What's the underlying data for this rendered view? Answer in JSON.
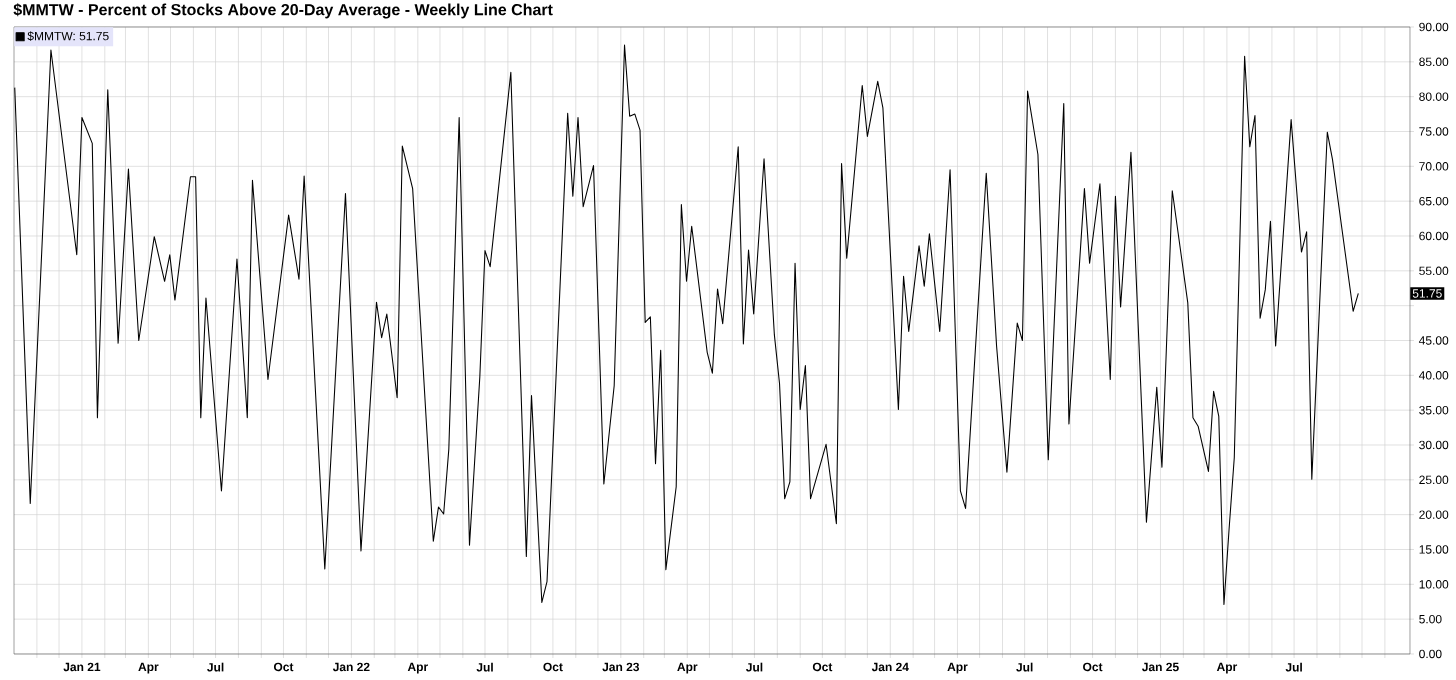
{
  "chart_data": {
    "type": "line",
    "title": "$MMTW - Percent of Stocks Above 20-Day Average - Weekly Line Chart",
    "series": [
      {
        "name": "$MMTW: 51.75",
        "color": "#000000",
        "x": [
          "2020-10-02",
          "2020-10-23",
          "2020-11-20",
          "2020-12-25",
          "2021-01-01",
          "2021-01-15",
          "2021-01-22",
          "2021-02-05",
          "2021-02-19",
          "2021-03-05",
          "2021-03-19",
          "2021-04-09",
          "2021-04-23",
          "2021-04-30",
          "2021-05-07",
          "2021-05-28",
          "2021-06-04",
          "2021-06-11",
          "2021-06-18",
          "2021-07-09",
          "2021-07-30",
          "2021-08-13",
          "2021-08-20",
          "2021-09-10",
          "2021-10-08",
          "2021-10-22",
          "2021-10-29",
          "2021-11-26",
          "2021-12-24",
          "2022-01-14",
          "2022-02-04",
          "2022-02-11",
          "2022-02-18",
          "2022-03-04",
          "2022-03-11",
          "2022-03-25",
          "2022-04-22",
          "2022-04-29",
          "2022-05-06",
          "2022-05-13",
          "2022-05-27",
          "2022-06-10",
          "2022-06-24",
          "2022-07-01",
          "2022-07-08",
          "2022-08-05",
          "2022-08-26",
          "2022-09-02",
          "2022-09-16",
          "2022-09-23",
          "2022-10-21",
          "2022-10-28",
          "2022-11-04",
          "2022-11-11",
          "2022-11-25",
          "2022-12-09",
          "2022-12-23",
          "2023-01-06",
          "2023-01-13",
          "2023-01-20",
          "2023-01-27",
          "2023-02-03",
          "2023-02-10",
          "2023-02-17",
          "2023-02-24",
          "2023-03-03",
          "2023-03-17",
          "2023-03-24",
          "2023-03-31",
          "2023-04-07",
          "2023-04-28",
          "2023-05-05",
          "2023-05-12",
          "2023-05-19",
          "2023-06-09",
          "2023-06-16",
          "2023-06-23",
          "2023-06-30",
          "2023-07-14",
          "2023-07-28",
          "2023-08-04",
          "2023-08-11",
          "2023-08-18",
          "2023-08-25",
          "2023-09-01",
          "2023-09-08",
          "2023-09-15",
          "2023-10-06",
          "2023-10-20",
          "2023-10-27",
          "2023-11-03",
          "2023-11-24",
          "2023-12-01",
          "2023-12-15",
          "2023-12-22",
          "2024-01-12",
          "2024-01-19",
          "2024-01-26",
          "2024-02-09",
          "2024-02-16",
          "2024-02-23",
          "2024-03-08",
          "2024-03-22",
          "2024-04-05",
          "2024-04-12",
          "2024-05-10",
          "2024-05-24",
          "2024-06-07",
          "2024-06-21",
          "2024-06-28",
          "2024-07-05",
          "2024-07-19",
          "2024-08-02",
          "2024-08-23",
          "2024-08-30",
          "2024-09-20",
          "2024-09-27",
          "2024-10-11",
          "2024-10-25",
          "2024-11-01",
          "2024-11-08",
          "2024-11-22",
          "2024-12-13",
          "2024-12-27",
          "2025-01-03",
          "2025-01-17",
          "2025-02-07",
          "2025-02-14",
          "2025-02-21",
          "2025-03-07",
          "2025-03-14",
          "2025-03-21",
          "2025-03-28",
          "2025-04-04",
          "2025-04-11",
          "2025-04-25",
          "2025-05-02",
          "2025-05-09",
          "2025-05-16",
          "2025-05-23",
          "2025-05-30",
          "2025-06-06",
          "2025-06-27",
          "2025-07-11",
          "2025-07-18",
          "2025-07-25",
          "2025-08-15",
          "2025-08-22",
          "2025-09-19",
          "2025-09-26"
        ],
        "values": [
          81.3,
          21.6,
          86.7,
          57.3,
          77,
          73.3,
          33.9,
          81,
          44.6,
          69.6,
          45,
          59.9,
          53.5,
          57.3,
          50.8,
          68.5,
          68.5,
          33.9,
          51.1,
          23.4,
          56.7,
          33.9,
          68,
          39.4,
          63,
          53.8,
          68.6,
          12.2,
          66.1,
          14.8,
          50.5,
          45.4,
          48.8,
          36.8,
          72.9,
          66.8,
          16.2,
          21.1,
          20.1,
          29.4,
          77,
          15.6,
          39.8,
          57.9,
          55.6,
          83.5,
          14,
          37.1,
          7.4,
          10.4,
          77.6,
          65.7,
          77,
          64.2,
          70.1,
          24.4,
          38.5,
          87.4,
          77.2,
          77.5,
          75.2,
          47.6,
          48.4,
          27.3,
          43.6,
          12.1,
          24,
          64.5,
          53.5,
          61.4,
          43.3,
          40.3,
          52.4,
          47.4,
          72.8,
          44.5,
          58,
          48.8,
          71.1,
          45.8,
          38.8,
          22.3,
          24.7,
          56.1,
          35.1,
          41.4,
          22.3,
          30.1,
          18.7,
          70.4,
          56.8,
          81.6,
          74.3,
          82.2,
          78.4,
          35.1,
          54.2,
          46.3,
          58.6,
          52.8,
          60.3,
          46.3,
          69.5,
          23.4,
          20.9,
          69,
          44.2,
          26.1,
          47.5,
          45,
          80.8,
          71.7,
          27.9,
          79,
          33,
          66.8,
          56.1,
          67.5,
          39.4,
          65.7,
          49.8,
          72,
          18.9,
          38.3,
          26.8,
          66.5,
          50.4,
          33.9,
          32.7,
          26.2,
          37.7,
          34.1,
          7.1,
          18,
          28.2,
          85.8,
          72.8,
          77.3,
          48.2,
          52.3,
          62.1,
          44.2,
          76.7,
          57.7,
          60.6,
          25.1,
          74.9,
          71,
          49.2,
          51.75
        ]
      }
    ],
    "xlim": [
      "2020-10-01",
      "2025-12-05"
    ],
    "xticks": [
      {
        "value": "2020-11-01",
        "label": null
      },
      {
        "value": "2020-12-01",
        "label": null
      },
      {
        "value": "2021-01-01",
        "label": "Jan 21"
      },
      {
        "value": "2021-02-01",
        "label": null
      },
      {
        "value": "2021-03-01",
        "label": null
      },
      {
        "value": "2021-04-01",
        "label": "Apr"
      },
      {
        "value": "2021-05-01",
        "label": null
      },
      {
        "value": "2021-06-01",
        "label": null
      },
      {
        "value": "2021-07-01",
        "label": "Jul"
      },
      {
        "value": "2021-08-01",
        "label": null
      },
      {
        "value": "2021-09-01",
        "label": null
      },
      {
        "value": "2021-10-01",
        "label": "Oct"
      },
      {
        "value": "2021-11-01",
        "label": null
      },
      {
        "value": "2021-12-01",
        "label": null
      },
      {
        "value": "2022-01-01",
        "label": "Jan 22"
      },
      {
        "value": "2022-02-01",
        "label": null
      },
      {
        "value": "2022-03-01",
        "label": null
      },
      {
        "value": "2022-04-01",
        "label": "Apr"
      },
      {
        "value": "2022-05-01",
        "label": null
      },
      {
        "value": "2022-06-01",
        "label": null
      },
      {
        "value": "2022-07-01",
        "label": "Jul"
      },
      {
        "value": "2022-08-01",
        "label": null
      },
      {
        "value": "2022-09-01",
        "label": null
      },
      {
        "value": "2022-10-01",
        "label": "Oct"
      },
      {
        "value": "2022-11-01",
        "label": null
      },
      {
        "value": "2022-12-01",
        "label": null
      },
      {
        "value": "2023-01-01",
        "label": "Jan 23"
      },
      {
        "value": "2023-02-01",
        "label": null
      },
      {
        "value": "2023-03-01",
        "label": null
      },
      {
        "value": "2023-04-01",
        "label": "Apr"
      },
      {
        "value": "2023-05-01",
        "label": null
      },
      {
        "value": "2023-06-01",
        "label": null
      },
      {
        "value": "2023-07-01",
        "label": "Jul"
      },
      {
        "value": "2023-08-01",
        "label": null
      },
      {
        "value": "2023-09-01",
        "label": null
      },
      {
        "value": "2023-10-01",
        "label": "Oct"
      },
      {
        "value": "2023-11-01",
        "label": null
      },
      {
        "value": "2023-12-01",
        "label": null
      },
      {
        "value": "2024-01-01",
        "label": "Jan 24"
      },
      {
        "value": "2024-02-01",
        "label": null
      },
      {
        "value": "2024-03-01",
        "label": null
      },
      {
        "value": "2024-04-01",
        "label": "Apr"
      },
      {
        "value": "2024-05-01",
        "label": null
      },
      {
        "value": "2024-06-01",
        "label": null
      },
      {
        "value": "2024-07-01",
        "label": "Jul"
      },
      {
        "value": "2024-08-01",
        "label": null
      },
      {
        "value": "2024-09-01",
        "label": null
      },
      {
        "value": "2024-10-01",
        "label": "Oct"
      },
      {
        "value": "2024-11-01",
        "label": null
      },
      {
        "value": "2024-12-01",
        "label": null
      },
      {
        "value": "2025-01-01",
        "label": "Jan 25"
      },
      {
        "value": "2025-02-01",
        "label": null
      },
      {
        "value": "2025-03-01",
        "label": null
      },
      {
        "value": "2025-04-01",
        "label": "Apr"
      },
      {
        "value": "2025-05-01",
        "label": null
      },
      {
        "value": "2025-06-01",
        "label": null
      },
      {
        "value": "2025-07-01",
        "label": "Jul"
      },
      {
        "value": "2025-08-01",
        "label": null
      },
      {
        "value": "2025-09-01",
        "label": null
      },
      {
        "value": "2025-10-01",
        "label": null
      },
      {
        "value": "2025-11-01",
        "label": null
      }
    ],
    "ylim": [
      0,
      90
    ],
    "yticks": [
      {
        "value": 0,
        "label": "0.00"
      },
      {
        "value": 5,
        "label": "5.00"
      },
      {
        "value": 10,
        "label": "10.00"
      },
      {
        "value": 15,
        "label": "15.00"
      },
      {
        "value": 20,
        "label": "20.00"
      },
      {
        "value": 25,
        "label": "25.00"
      },
      {
        "value": 30,
        "label": "30.00"
      },
      {
        "value": 35,
        "label": "35.00"
      },
      {
        "value": 40,
        "label": "40.00"
      },
      {
        "value": 45,
        "label": "45.00"
      },
      {
        "value": 50,
        "label": null
      },
      {
        "value": 55,
        "label": "55.00"
      },
      {
        "value": 60,
        "label": "60.00"
      },
      {
        "value": 65,
        "label": "65.00"
      },
      {
        "value": 70,
        "label": "70.00"
      },
      {
        "value": 75,
        "label": "75.00"
      },
      {
        "value": 80,
        "label": "80.00"
      },
      {
        "value": 85,
        "label": "85.00"
      },
      {
        "value": 90,
        "label": "90.00"
      }
    ],
    "grid": true,
    "legend": "top left",
    "annotations": [
      {
        "text": "51.75",
        "y": 51.75
      }
    ]
  }
}
